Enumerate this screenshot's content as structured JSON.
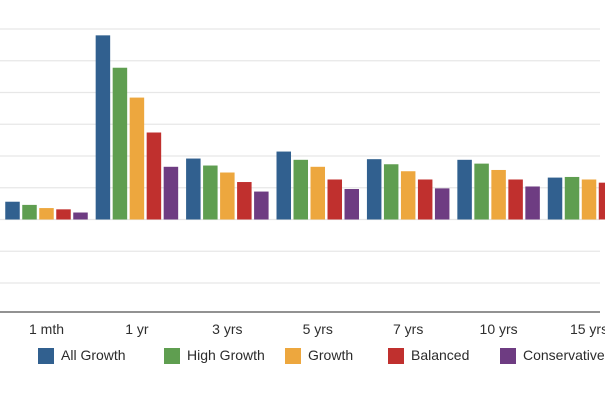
{
  "chart_data": {
    "type": "bar",
    "title": "",
    "xlabel": "",
    "ylabel": "",
    "categories": [
      "1 mth",
      "1 yr",
      "3 yrs",
      "5 yrs",
      "7 yrs",
      "10 yrs",
      "15 yrs"
    ],
    "series": [
      {
        "name": "All Growth",
        "color": "#31608f",
        "values": [
          2.8,
          29.0,
          9.6,
          10.7,
          9.5,
          9.4,
          6.6
        ]
      },
      {
        "name": "High Growth",
        "color": "#5f9e50",
        "values": [
          2.3,
          23.9,
          8.5,
          9.4,
          8.7,
          8.8,
          6.7
        ]
      },
      {
        "name": "Growth",
        "color": "#eda73e",
        "values": [
          1.8,
          19.2,
          7.4,
          8.3,
          7.6,
          7.8,
          6.3
        ]
      },
      {
        "name": "Balanced",
        "color": "#c0302e",
        "values": [
          1.6,
          13.7,
          5.9,
          6.3,
          6.3,
          6.3,
          5.8
        ]
      },
      {
        "name": "Conservative",
        "color": "#6e3c82",
        "values": [
          1.1,
          8.3,
          4.4,
          4.8,
          4.9,
          5.2,
          null
        ]
      }
    ],
    "y_axis": {
      "tick_labels_visible": false,
      "gridline_values": [
        30,
        25,
        20,
        15,
        10,
        5,
        0,
        -5,
        -10
      ],
      "ylim": [
        -15,
        32
      ],
      "zero_baseline": true
    },
    "grid": true,
    "legend": {
      "position": "bottom",
      "entries": [
        "All Growth",
        "High Growth",
        "Growth",
        "Balanced",
        "Conservative"
      ]
    },
    "theme": {
      "background": "#ffffff",
      "gridline_color": "#e7e7e7",
      "axis_line_color": "#6f6f6f",
      "axis_label_color": "#2e2e2e",
      "legend_label_color": "#2b2b2b"
    }
  }
}
